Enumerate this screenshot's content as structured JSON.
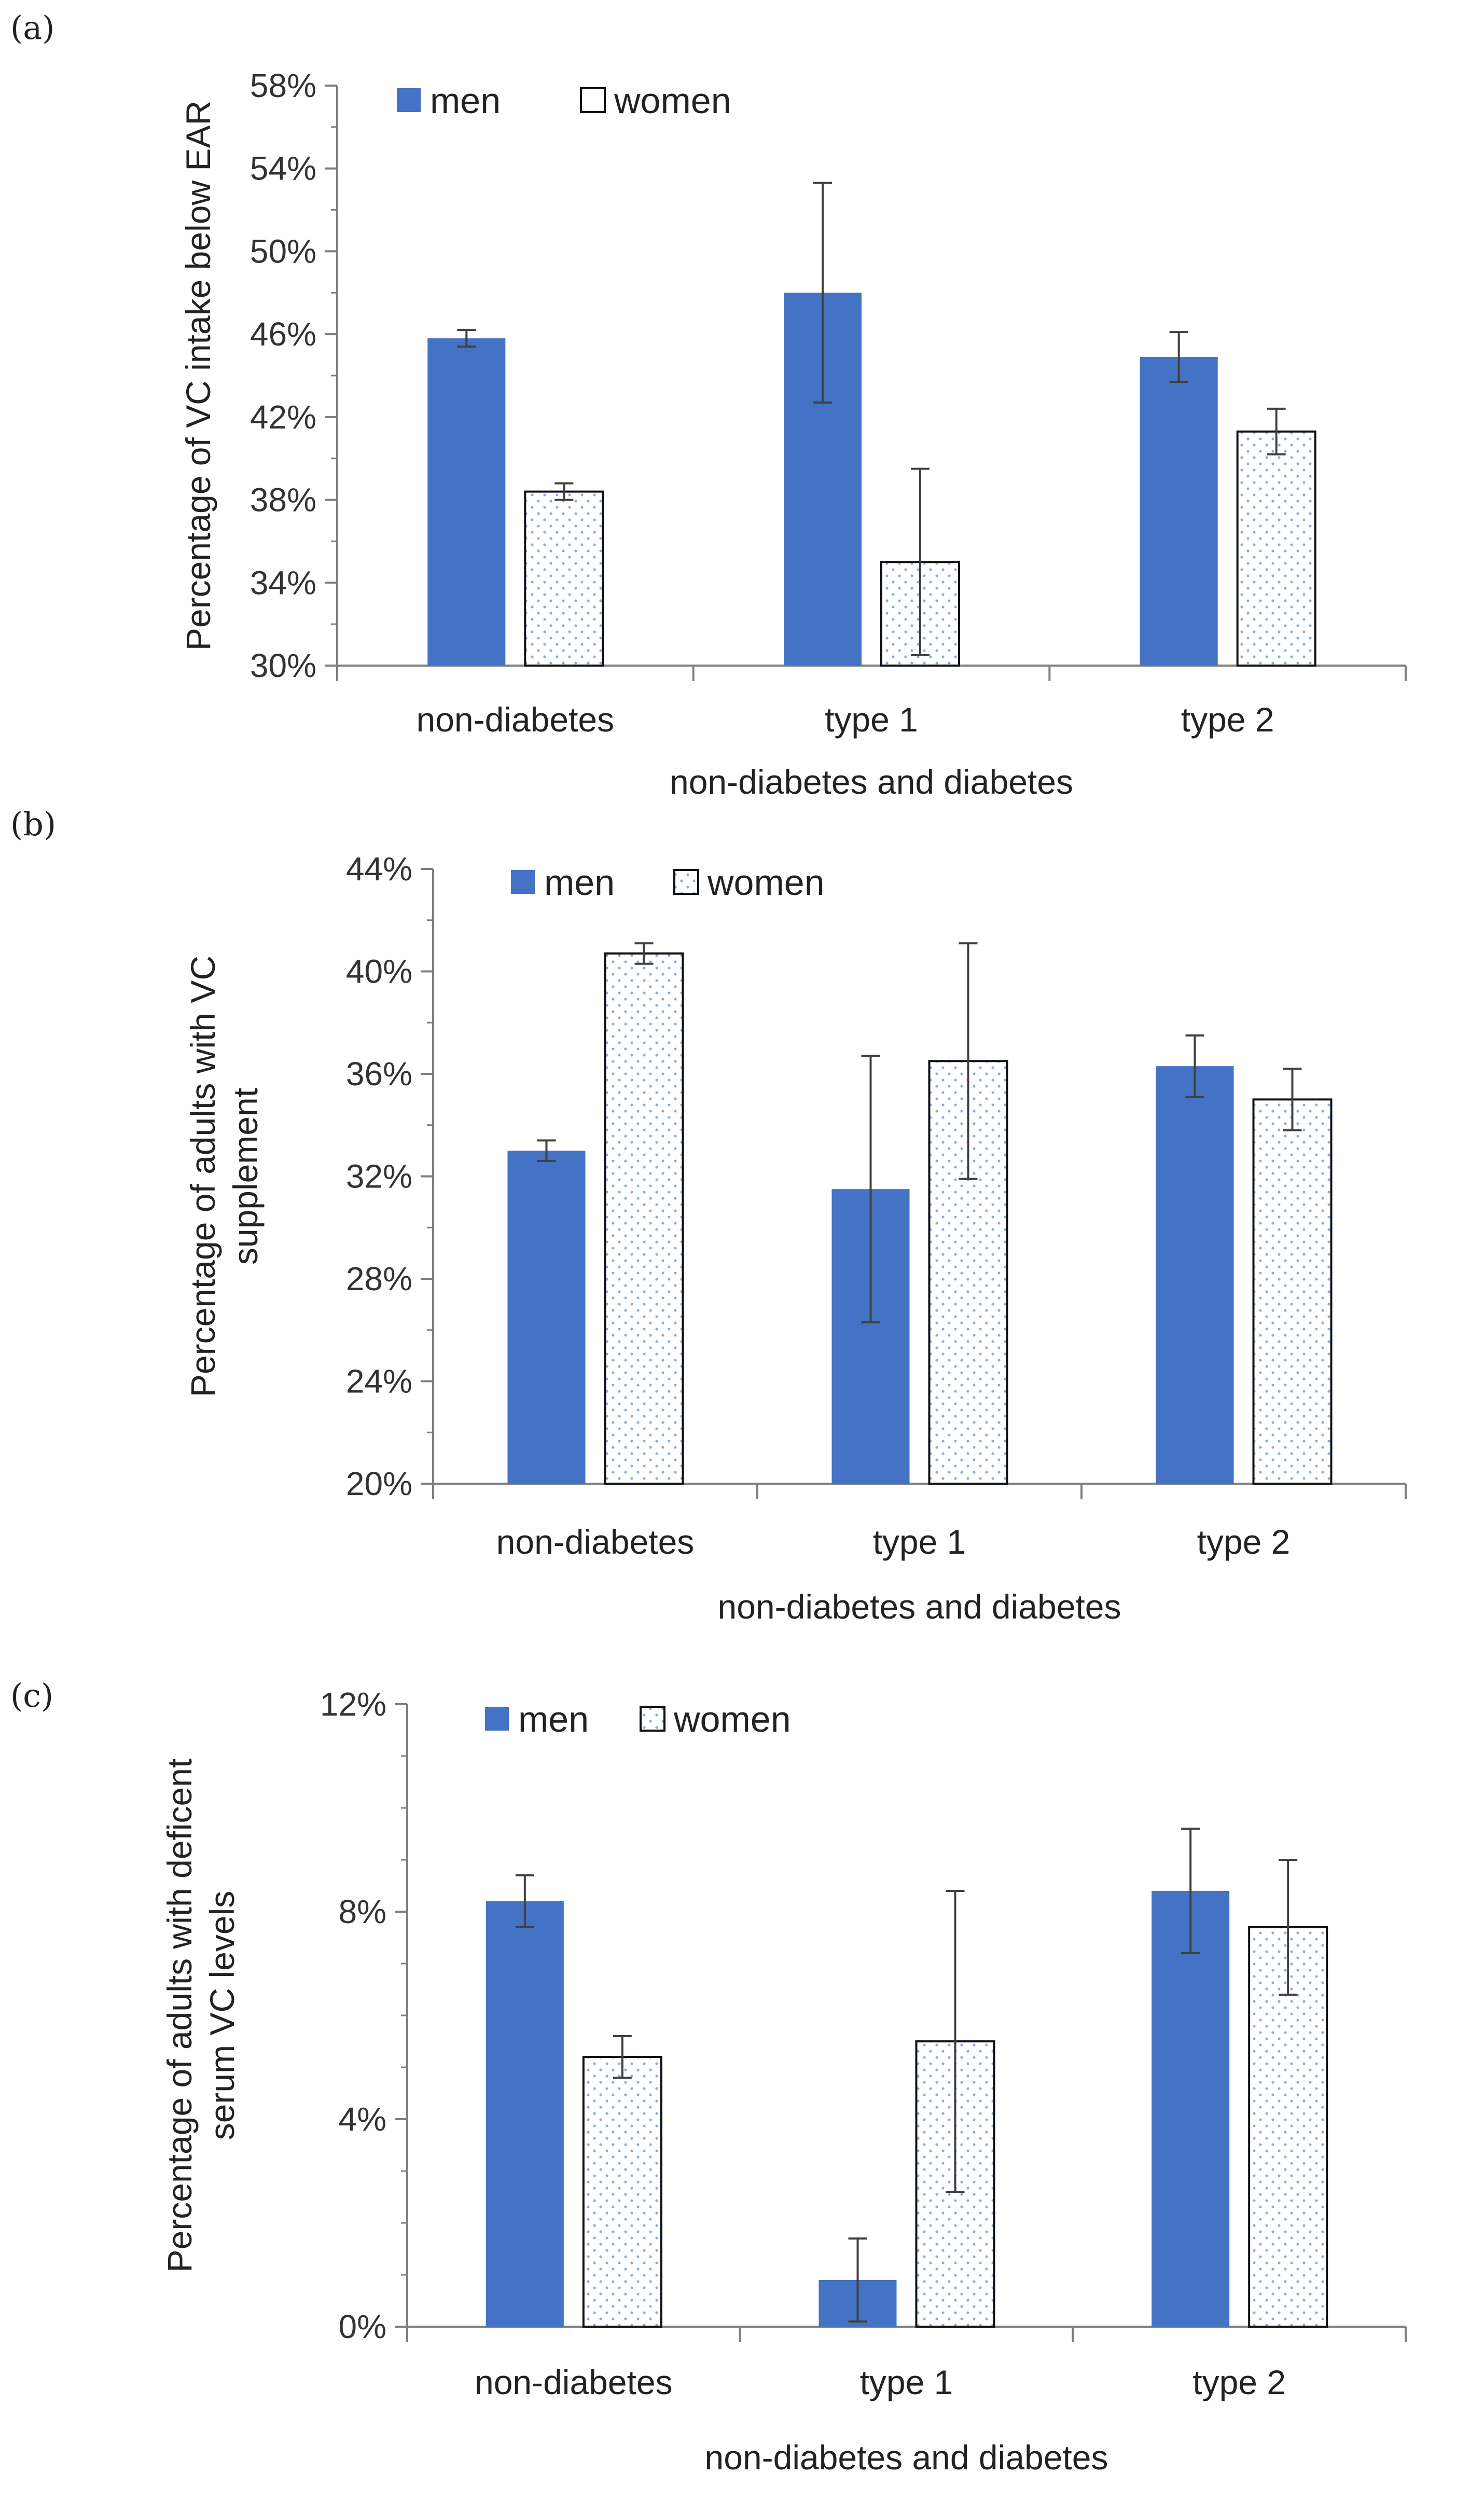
{
  "colors": {
    "men": "#4472c4",
    "women_dots": "#8faadc",
    "axis": "#7f7f7f",
    "error_bar": "#404040"
  },
  "chart_data": [
    {
      "panel_label": "(a)",
      "type": "bar",
      "title": "",
      "ylabel": "Percentage of VC intake below EAR",
      "xlabel": "non-diabetes and diabetes",
      "categories": [
        "non-diabetes",
        "type 1",
        "type 2"
      ],
      "ylim": [
        30,
        58
      ],
      "yticks": [
        30,
        34,
        38,
        42,
        46,
        50,
        54,
        58
      ],
      "ytick_labels": [
        "30%",
        "34%",
        "38%",
        "42%",
        "46%",
        "50%",
        "54%",
        "58%"
      ],
      "legend_position": "top-left",
      "series": [
        {
          "name": "men",
          "values": [
            45.8,
            48.0,
            44.9
          ],
          "errors": [
            0.4,
            5.3,
            1.2
          ]
        },
        {
          "name": "women",
          "values": [
            38.4,
            35.0,
            41.3
          ],
          "errors": [
            0.4,
            4.5,
            1.1
          ]
        }
      ]
    },
    {
      "panel_label": "(b)",
      "type": "bar",
      "title": "",
      "ylabel": "Percentage of adults with VC supplement",
      "xlabel": "non-diabetes and diabetes",
      "categories": [
        "non-diabetes",
        "type 1",
        "type 2"
      ],
      "ylim": [
        20,
        44
      ],
      "yticks": [
        20,
        24,
        28,
        32,
        36,
        40,
        44
      ],
      "ytick_labels": [
        "20%",
        "24%",
        "28%",
        "32%",
        "36%",
        "40%",
        "44%"
      ],
      "legend_position": "top-left",
      "series": [
        {
          "name": "men",
          "values": [
            33.0,
            31.5,
            36.3
          ],
          "errors": [
            0.4,
            5.2,
            1.2
          ]
        },
        {
          "name": "women",
          "values": [
            40.7,
            36.5,
            35.0
          ],
          "errors": [
            0.4,
            4.6,
            1.2
          ]
        }
      ]
    },
    {
      "panel_label": "(c)",
      "type": "bar",
      "title": "",
      "ylabel": "Percentage of adults with deficent serum VC levels",
      "xlabel": "non-diabetes and diabetes",
      "categories": [
        "non-diabetes",
        "type 1",
        "type 2"
      ],
      "ylim": [
        0,
        12
      ],
      "yticks": [
        0,
        4,
        8,
        12
      ],
      "ytick_labels": [
        "0%",
        "4%",
        "8%",
        "12%"
      ],
      "legend_position": "top-left",
      "series": [
        {
          "name": "men",
          "values": [
            8.2,
            0.9,
            8.4
          ],
          "errors": [
            0.5,
            0.8,
            1.2
          ]
        },
        {
          "name": "women",
          "values": [
            5.2,
            5.5,
            7.7
          ],
          "errors": [
            0.4,
            2.9,
            1.3
          ]
        }
      ]
    }
  ]
}
